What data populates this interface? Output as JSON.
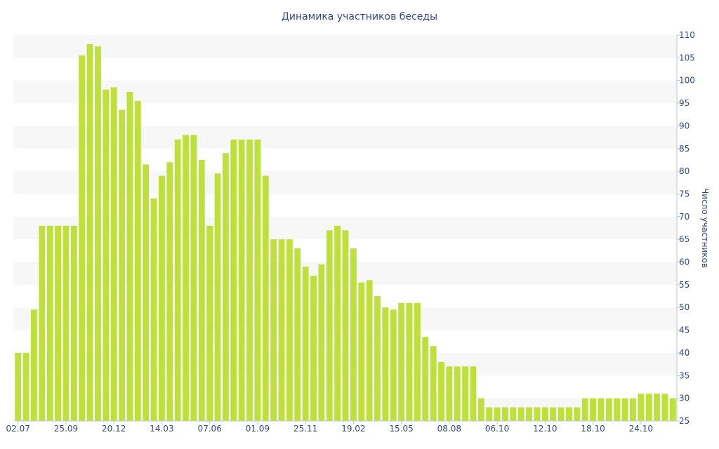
{
  "chart_data": {
    "type": "bar",
    "title": "Динамика участников беседы",
    "ylabel": "Число участников",
    "xlabel": "",
    "ylim": [
      25,
      110
    ],
    "yticks": [
      25,
      30,
      35,
      40,
      45,
      50,
      55,
      60,
      65,
      70,
      75,
      80,
      85,
      90,
      95,
      100,
      105,
      110
    ],
    "xticks": [
      {
        "index": 0,
        "label": "02.07"
      },
      {
        "index": 6,
        "label": "25.09"
      },
      {
        "index": 12,
        "label": "20.12"
      },
      {
        "index": 18,
        "label": "14.03"
      },
      {
        "index": 24,
        "label": "07.06"
      },
      {
        "index": 30,
        "label": "01.09"
      },
      {
        "index": 36,
        "label": "25.11"
      },
      {
        "index": 42,
        "label": "19.02"
      },
      {
        "index": 48,
        "label": "15.05"
      },
      {
        "index": 54,
        "label": "08.08"
      },
      {
        "index": 60,
        "label": "06.10"
      },
      {
        "index": 66,
        "label": "12.10"
      },
      {
        "index": 72,
        "label": "18.10"
      },
      {
        "index": 78,
        "label": "24.10"
      }
    ],
    "grid": "horizontal-bands",
    "bar_color": "#bfe03a",
    "band_color": "#f7f7f7",
    "text_color": "#34497a",
    "values": [
      40,
      40,
      49.5,
      68,
      68,
      68,
      68,
      68,
      105.5,
      108,
      107.5,
      98,
      98.5,
      93.5,
      97.5,
      95.5,
      81.5,
      74,
      79,
      82,
      87,
      88,
      88,
      82.5,
      68,
      79.5,
      84,
      87,
      87,
      87,
      87,
      79,
      65,
      65,
      65,
      63,
      59,
      57,
      59.5,
      67,
      68,
      67,
      63,
      55.5,
      56,
      52.5,
      50,
      49.5,
      51,
      51,
      51,
      43.5,
      41.5,
      38,
      37,
      37,
      37,
      37,
      30,
      28,
      28,
      28,
      28,
      28,
      28,
      28,
      28,
      28,
      28,
      28,
      28,
      30,
      30,
      30,
      30,
      30,
      30,
      30,
      31,
      31,
      31,
      31,
      30
    ]
  }
}
